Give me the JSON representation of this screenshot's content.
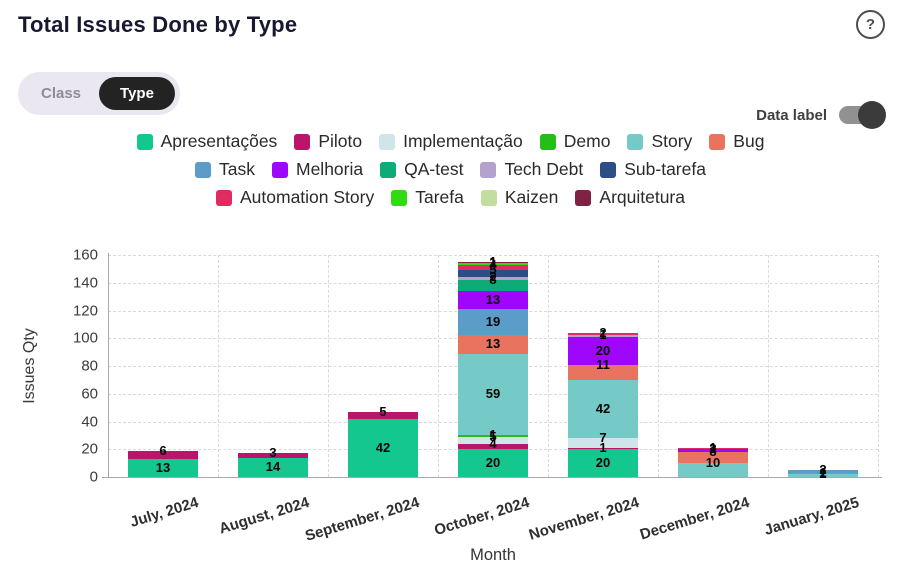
{
  "header": {
    "title": "Total Issues Done by Type",
    "help_icon": "?"
  },
  "view_toggle": {
    "options": [
      "Class",
      "Type"
    ],
    "selected": "Type"
  },
  "data_label_toggle": {
    "label": "Data label",
    "on": true
  },
  "chart_data": {
    "type": "bar",
    "stacked": true,
    "title": "Total Issues Done by Type",
    "xlabel": "Month",
    "ylabel": "Issues Qty",
    "ylim": [
      0,
      160
    ],
    "ytick_step": 20,
    "grid": true,
    "legend_position": "top",
    "legend_row_breaks": [
      6,
      11
    ],
    "data_labels_visible": true,
    "categories": [
      "July, 2024",
      "August, 2024",
      "September, 2024",
      "October, 2024",
      "November, 2024",
      "December, 2024",
      "January, 2025"
    ],
    "series": [
      {
        "name": "Apresentações",
        "color": "#13c78e",
        "values": [
          13,
          14,
          42,
          20,
          20,
          0,
          0
        ]
      },
      {
        "name": "Piloto",
        "color": "#b9166b",
        "values": [
          6,
          3,
          5,
          4,
          1,
          0,
          0
        ]
      },
      {
        "name": "Implementação",
        "color": "#cee6e9",
        "values": [
          0,
          0,
          0,
          5,
          7,
          0,
          0
        ]
      },
      {
        "name": "Demo",
        "color": "#27bd17",
        "values": [
          0,
          0,
          0,
          1,
          0,
          0,
          0
        ]
      },
      {
        "name": "Story",
        "color": "#75c9c6",
        "values": [
          0,
          0,
          0,
          59,
          42,
          10,
          2
        ]
      },
      {
        "name": "Bug",
        "color": "#e8745f",
        "values": [
          0,
          0,
          0,
          13,
          11,
          8,
          1
        ]
      },
      {
        "name": "Task",
        "color": "#5c9cc9",
        "values": [
          0,
          0,
          0,
          19,
          0,
          0,
          2
        ]
      },
      {
        "name": "Melhoria",
        "color": "#9e07fb",
        "values": [
          0,
          0,
          0,
          13,
          20,
          2,
          0
        ]
      },
      {
        "name": "QA-test",
        "color": "#0dab77",
        "values": [
          0,
          0,
          0,
          8,
          0,
          0,
          0
        ]
      },
      {
        "name": "Tech Debt",
        "color": "#b3a3cc",
        "values": [
          0,
          0,
          0,
          2,
          1,
          0,
          0
        ]
      },
      {
        "name": "Sub-tarefa",
        "color": "#2d4d87",
        "values": [
          0,
          0,
          0,
          5,
          0,
          0,
          0
        ]
      },
      {
        "name": "Automation Story",
        "color": "#e02c61",
        "values": [
          0,
          0,
          0,
          4,
          2,
          1,
          0
        ]
      },
      {
        "name": "Tarefa",
        "color": "#32da12",
        "values": [
          0,
          0,
          0,
          1,
          0,
          0,
          0
        ]
      },
      {
        "name": "Kaizen",
        "color": "#c2dd9d",
        "values": [
          0,
          0,
          0,
          0,
          0,
          0,
          0
        ]
      },
      {
        "name": "Arquitetura",
        "color": "#7e2343",
        "values": [
          0,
          0,
          0,
          1,
          0,
          0,
          0
        ]
      }
    ]
  }
}
